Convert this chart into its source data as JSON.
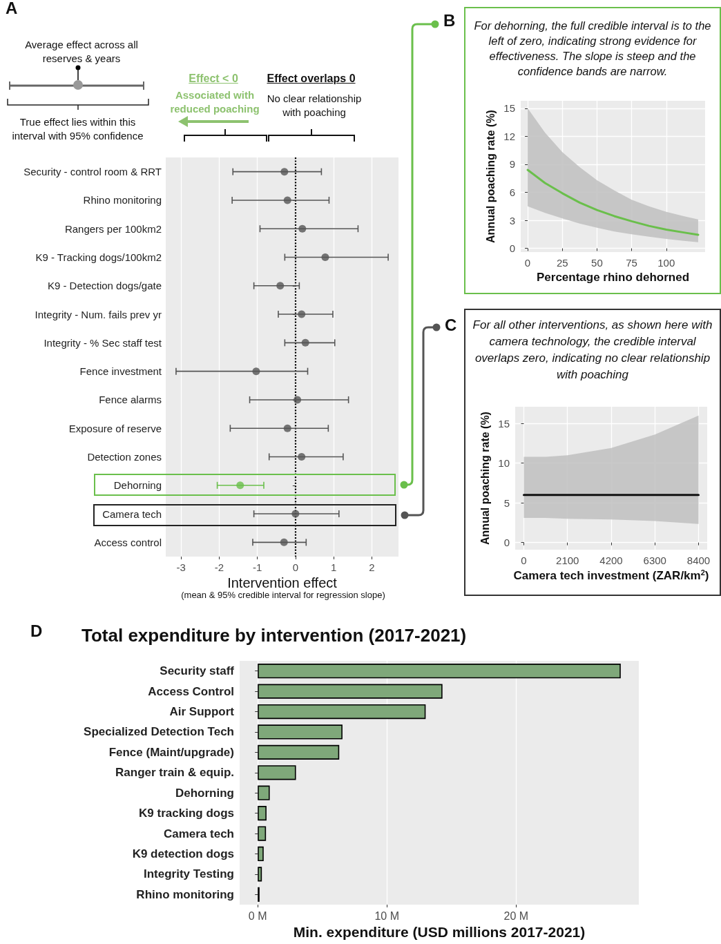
{
  "chart_data": [
    {
      "type": "scatter",
      "orientation": "horizontal",
      "xlabel": "Intervention effect",
      "annotations": [
        "A",
        "Average effect across all reserves & years",
        "True effect lies within this interval with 95% confidence",
        "Effect < 0",
        "Associated with reduced poaching",
        "Effect overlaps 0",
        "No clear relationship with poaching",
        "(mean & 95% credible interval for regression slope)"
      ],
      "categories": [
        "Security - control room & RRT",
        "Rhino monitoring",
        "Rangers per 100km2",
        "K9 - Tracking dogs/100km2",
        "K9 - Detection dogs/gate",
        "Integrity - Num. fails prev yr",
        "Integrity - % Sec staff test",
        "Fence investment",
        "Fence alarms",
        "Exposure of reserve",
        "Detection zones",
        "Dehorning",
        "Camera tech",
        "Access control"
      ],
      "values": [
        -0.29,
        -0.21,
        0.18,
        0.78,
        -0.4,
        0.16,
        0.26,
        -1.03,
        0.05,
        -0.21,
        0.16,
        -1.45,
        0.0,
        -0.3
      ],
      "errors": [
        [
          -1.64,
          0.68
        ],
        [
          -1.66,
          0.88
        ],
        [
          -0.93,
          1.64
        ],
        [
          -0.28,
          2.43
        ],
        [
          -1.09,
          0.1
        ],
        [
          -0.45,
          0.98
        ],
        [
          -0.28,
          1.03
        ],
        [
          -3.13,
          0.32
        ],
        [
          -1.2,
          1.39
        ],
        [
          -1.71,
          0.86
        ],
        [
          -0.69,
          1.25
        ],
        [
          -2.05,
          -0.83
        ],
        [
          -1.09,
          1.14
        ],
        [
          -1.12,
          0.28
        ]
      ],
      "colors": [
        "#555555",
        "#555555",
        "#555555",
        "#555555",
        "#555555",
        "#555555",
        "#555555",
        "#555555",
        "#555555",
        "#555555",
        "#555555",
        "#6abf4b",
        "#555555",
        "#555555"
      ],
      "xlim": [
        -3.4,
        2.7
      ],
      "xticks": [
        -3,
        -2,
        -1,
        0,
        1,
        2
      ],
      "ref_lines": [
        {
          "axis": "x",
          "value": 0,
          "line_style": "dotted",
          "color": "#000000"
        }
      ],
      "grid": "x",
      "marker": "circle"
    },
    {
      "type": "line",
      "title": "For dehorning, the full credible interval is to the left of zero, indicating strong evidence for effectiveness. The slope is steep and the confidence bands are narrow.",
      "xlabel": "Percentage rhino dehorned",
      "ylabel": "Annual poaching rate (%)",
      "annotations": [
        "B"
      ],
      "x": [
        0,
        12.5,
        25,
        37.5,
        50,
        62.5,
        75,
        87.5,
        100,
        112.5,
        123
      ],
      "series": [
        {
          "color": "#6abf4b",
          "values": [
            8.4,
            7.0,
            5.9,
            4.9,
            4.1,
            3.45,
            2.9,
            2.4,
            2.0,
            1.7,
            1.45
          ],
          "upper": [
            15.0,
            12.4,
            10.3,
            8.7,
            7.3,
            6.2,
            5.2,
            4.5,
            3.9,
            3.45,
            3.1
          ],
          "lower": [
            4.5,
            3.8,
            3.2,
            2.65,
            2.2,
            1.8,
            1.5,
            1.25,
            1.0,
            0.8,
            0.65
          ]
        }
      ],
      "xlim": [
        -5,
        128
      ],
      "xticks": [
        0,
        25,
        50,
        75,
        100
      ],
      "ylim": [
        -0.4,
        15.8
      ],
      "yticks": [
        0,
        3,
        6,
        9,
        12,
        15
      ],
      "grid": true,
      "marker": "none"
    },
    {
      "type": "line",
      "title": "For all other interventions, as shown here with camera technology, the credible interval overlaps zero, indicating no clear relationship with poaching",
      "xlabel": "Camera tech investment (ZAR/km$^{2}$)",
      "ylabel": "Annual poaching rate (%)",
      "annotations": [
        "C"
      ],
      "x": [
        0,
        1050,
        2100,
        4200,
        6300,
        8400
      ],
      "series": [
        {
          "color": "#111111",
          "values": [
            6.0,
            6.0,
            6.0,
            6.0,
            6.0,
            6.0
          ],
          "upper": [
            10.8,
            10.8,
            11.0,
            11.9,
            13.6,
            16.0
          ],
          "lower": [
            3.1,
            3.1,
            3.0,
            2.9,
            2.7,
            2.35
          ]
        }
      ],
      "xlim": [
        -415,
        8815
      ],
      "xticks": [
        0,
        2100,
        4200,
        6300,
        8400
      ],
      "ylim": [
        -0.9,
        17.1
      ],
      "yticks": [
        0,
        5,
        10,
        15
      ],
      "grid": true,
      "marker": "none"
    },
    {
      "type": "bar",
      "orientation": "horizontal",
      "title": "Total expenditure by intervention (2017-2021)",
      "xlabel": "Min. expenditure (USD millions 2017-2021)",
      "annotations": [
        "D"
      ],
      "categories": [
        "Security staff",
        "Access Control",
        "Air Support",
        "Specialized Detection Tech",
        "Fence (Maint/upgrade)",
        "Ranger train & equip.",
        "Dehorning",
        "K9 tracking dogs",
        "Camera tech",
        "K9 detection dogs",
        "Integrity Testing",
        "Rhino monitoring"
      ],
      "values": [
        28.1,
        14.3,
        13.0,
        6.56,
        6.31,
        2.96,
        0.93,
        0.68,
        0.64,
        0.46,
        0.32,
        0.14
      ],
      "color": "#7fa87a",
      "xlim": [
        -1.4,
        29.5
      ],
      "xticks": [
        {
          "value": 0,
          "label": "0 M"
        },
        {
          "value": 10,
          "label": "10 M"
        },
        {
          "value": 20,
          "label": "20 M"
        }
      ],
      "grid": "x"
    }
  ]
}
